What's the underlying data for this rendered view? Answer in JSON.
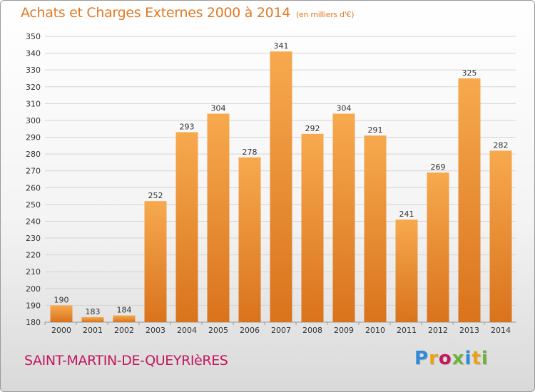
{
  "header": {
    "title": "Achats et Charges Externes 2000 à 2014",
    "subtitle": "(en milliers d'€)"
  },
  "footer": {
    "commune": "SAINT-MARTIN-DE-QUEYRIèRES",
    "logo_text": "Proxiti",
    "logo_letters": [
      {
        "char": "P",
        "color": "#2e8bd8"
      },
      {
        "char": "r",
        "color": "#e8a21a"
      },
      {
        "char": "o",
        "color": "#c2185b"
      },
      {
        "char": "x",
        "color": "#6cb33e"
      },
      {
        "char": "i",
        "color": "#2e8bd8"
      },
      {
        "char": "t",
        "color": "#e8a21a"
      },
      {
        "char": "i",
        "color": "#6cb33e"
      }
    ]
  },
  "chart_data": {
    "type": "bar",
    "title": "Achats et Charges Externes 2000 à 2014",
    "subtitle": "(en milliers d'€)",
    "categories": [
      "2000",
      "2001",
      "2002",
      "2003",
      "2004",
      "2005",
      "2006",
      "2007",
      "2008",
      "2009",
      "2010",
      "2011",
      "2012",
      "2013",
      "2014"
    ],
    "values": [
      190,
      183,
      184,
      252,
      293,
      304,
      278,
      341,
      292,
      304,
      291,
      241,
      269,
      325,
      282
    ],
    "ylim": [
      180,
      350
    ],
    "ytick_step": 10,
    "grid": true,
    "bar_color": "#f0943a",
    "bar_color_light": "#f7a94e",
    "bar_color_dark": "#d9731c"
  }
}
